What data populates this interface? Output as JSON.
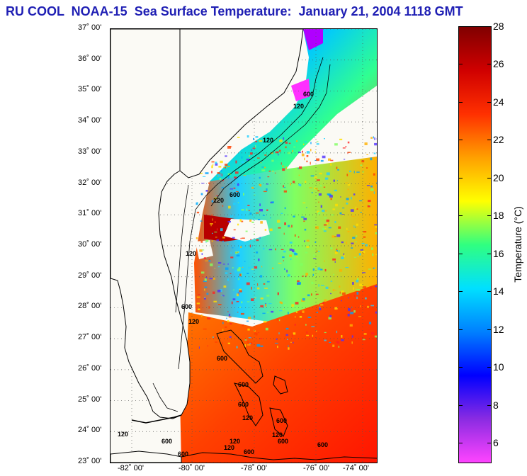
{
  "title": "RU COOL  NOAA-15  Sea Surface Temperature:  January 21, 2004 1118 GMT",
  "lat_labels": [
    "37˚ 00'",
    "36˚ 00'",
    "35˚ 00'",
    "34˚ 00'",
    "33˚ 00'",
    "32˚ 00'",
    "31˚ 00'",
    "30˚ 00'",
    "29˚ 00'",
    "28˚ 00'",
    "27˚ 00'",
    "26˚ 00'",
    "25˚ 00'",
    "24˚ 00'",
    "23˚ 00'"
  ],
  "lon_labels": [
    "-82˚ 00'",
    "-80˚ 00'",
    "-78˚ 00'",
    "-76˚ 00'",
    "-74˚ 00'"
  ],
  "contour_labels": [
    "600",
    "120",
    "120",
    "120",
    "600",
    "120",
    "600",
    "120",
    "600",
    "600",
    "600",
    "120",
    "600",
    "120",
    "120",
    "600",
    "600",
    "120",
    "120",
    "600",
    "600",
    "600"
  ],
  "colorbar": {
    "label": "Temperature (°C)",
    "ticks": [
      "28",
      "26",
      "24",
      "22",
      "20",
      "18",
      "16",
      "14",
      "12",
      "10",
      "8",
      "6"
    ],
    "min": 5,
    "max": 28,
    "colors": [
      "#ff44ff",
      "#8a2be2",
      "#0000ff",
      "#0080ff",
      "#00e0ff",
      "#30ff80",
      "#ffff00",
      "#ffa000",
      "#ff3000",
      "#d00000",
      "#800000"
    ]
  },
  "map": {
    "lon_range": [
      -83,
      -73
    ],
    "lat_range": [
      23,
      37
    ],
    "land_color": "#fbfaf5",
    "gridlines": true
  }
}
